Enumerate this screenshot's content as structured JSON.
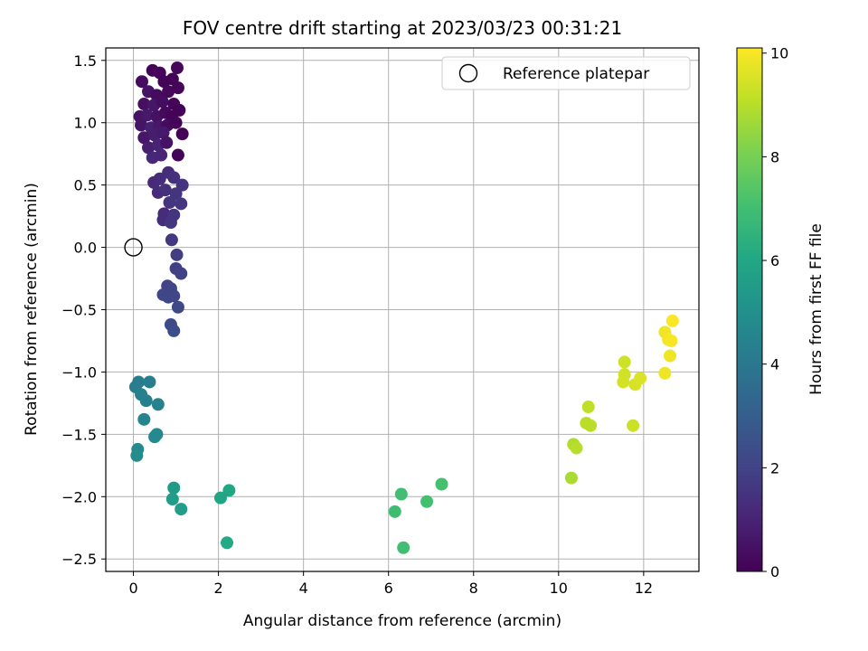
{
  "chart_data": {
    "type": "scatter",
    "title": "FOV centre drift starting at 2023/03/23 00:31:21",
    "xlabel": "Angular distance from reference (arcmin)",
    "ylabel": "Rotation from reference (arcmin)",
    "xlim": [
      -0.65,
      13.3
    ],
    "ylim": [
      -2.6,
      1.6
    ],
    "xticks": [
      0,
      2,
      4,
      6,
      8,
      10,
      12
    ],
    "xtick_labels": [
      "0",
      "2",
      "4",
      "6",
      "8",
      "10",
      "12"
    ],
    "yticks": [
      -2.5,
      -2.0,
      -1.5,
      -1.0,
      -0.5,
      0.0,
      0.5,
      1.0,
      1.5
    ],
    "ytick_labels": [
      "−2.5",
      "−2.0",
      "−1.5",
      "−1.0",
      "−0.5",
      "0.0",
      "0.5",
      "1.0",
      "1.5"
    ],
    "grid": true,
    "legend": {
      "position": "top-right",
      "entries": [
        "Reference platepar"
      ]
    },
    "reference_point": {
      "name": "Reference platepar",
      "x": 0,
      "y": 0
    },
    "colormap": "viridis",
    "colorbar": {
      "label": "Hours from first FF file",
      "range": [
        0,
        10.1
      ],
      "ticks": [
        0,
        2,
        4,
        6,
        8,
        10
      ],
      "tick_labels": [
        "0",
        "2",
        "4",
        "6",
        "8",
        "10"
      ]
    },
    "points": [
      {
        "x": 0.45,
        "y": 1.42,
        "h": 0.1
      },
      {
        "x": 0.62,
        "y": 1.4,
        "h": 0.15
      },
      {
        "x": 1.03,
        "y": 1.44,
        "h": 0.2
      },
      {
        "x": 0.2,
        "y": 1.33,
        "h": 0.3
      },
      {
        "x": 0.72,
        "y": 1.33,
        "h": 0.1
      },
      {
        "x": 0.92,
        "y": 1.35,
        "h": 0.05
      },
      {
        "x": 0.35,
        "y": 1.25,
        "h": 0.5
      },
      {
        "x": 0.55,
        "y": 1.22,
        "h": 0.3
      },
      {
        "x": 0.82,
        "y": 1.25,
        "h": 0.2
      },
      {
        "x": 1.05,
        "y": 1.28,
        "h": 0.1
      },
      {
        "x": 0.25,
        "y": 1.15,
        "h": 0.4
      },
      {
        "x": 0.48,
        "y": 1.14,
        "h": 0.6
      },
      {
        "x": 0.68,
        "y": 1.17,
        "h": 0.35
      },
      {
        "x": 0.95,
        "y": 1.15,
        "h": 0.15
      },
      {
        "x": 1.08,
        "y": 1.1,
        "h": 0.05
      },
      {
        "x": 0.15,
        "y": 1.05,
        "h": 0.5
      },
      {
        "x": 0.32,
        "y": 1.06,
        "h": 0.7
      },
      {
        "x": 0.55,
        "y": 1.05,
        "h": 0.45
      },
      {
        "x": 0.75,
        "y": 1.08,
        "h": 0.25
      },
      {
        "x": 0.9,
        "y": 1.05,
        "h": 0.1
      },
      {
        "x": 0.18,
        "y": 0.98,
        "h": 0.55
      },
      {
        "x": 0.42,
        "y": 0.96,
        "h": 0.9
      },
      {
        "x": 0.6,
        "y": 0.97,
        "h": 0.65
      },
      {
        "x": 0.8,
        "y": 0.98,
        "h": 0.3
      },
      {
        "x": 1.0,
        "y": 1.0,
        "h": 0.1
      },
      {
        "x": 0.25,
        "y": 0.88,
        "h": 0.6
      },
      {
        "x": 0.5,
        "y": 0.9,
        "h": 0.8
      },
      {
        "x": 0.7,
        "y": 0.92,
        "h": 0.7
      },
      {
        "x": 1.15,
        "y": 0.91,
        "h": 0.05
      },
      {
        "x": 0.35,
        "y": 0.8,
        "h": 0.85
      },
      {
        "x": 0.58,
        "y": 0.82,
        "h": 1.0
      },
      {
        "x": 0.78,
        "y": 0.84,
        "h": 0.5
      },
      {
        "x": 0.45,
        "y": 0.72,
        "h": 1.1
      },
      {
        "x": 0.65,
        "y": 0.74,
        "h": 1.05
      },
      {
        "x": 1.05,
        "y": 0.74,
        "h": 0.1
      },
      {
        "x": 0.82,
        "y": 0.6,
        "h": 1.3
      },
      {
        "x": 0.48,
        "y": 0.52,
        "h": 1.2
      },
      {
        "x": 0.62,
        "y": 0.55,
        "h": 1.3
      },
      {
        "x": 0.95,
        "y": 0.56,
        "h": 1.4
      },
      {
        "x": 1.15,
        "y": 0.5,
        "h": 1.5
      },
      {
        "x": 0.58,
        "y": 0.44,
        "h": 1.2
      },
      {
        "x": 0.75,
        "y": 0.46,
        "h": 1.4
      },
      {
        "x": 1.0,
        "y": 0.43,
        "h": 1.55
      },
      {
        "x": 0.85,
        "y": 0.36,
        "h": 1.5
      },
      {
        "x": 1.12,
        "y": 0.35,
        "h": 1.6
      },
      {
        "x": 0.72,
        "y": 0.27,
        "h": 1.25
      },
      {
        "x": 0.95,
        "y": 0.26,
        "h": 1.55
      },
      {
        "x": 0.7,
        "y": 0.22,
        "h": 1.3
      },
      {
        "x": 0.88,
        "y": 0.2,
        "h": 1.5
      },
      {
        "x": 0.9,
        "y": 0.06,
        "h": 1.65
      },
      {
        "x": 1.02,
        "y": -0.06,
        "h": 1.8
      },
      {
        "x": 1.0,
        "y": -0.17,
        "h": 1.9
      },
      {
        "x": 1.12,
        "y": -0.21,
        "h": 1.95
      },
      {
        "x": 0.8,
        "y": -0.31,
        "h": 2.0
      },
      {
        "x": 0.88,
        "y": -0.33,
        "h": 2.05
      },
      {
        "x": 0.7,
        "y": -0.38,
        "h": 2.1
      },
      {
        "x": 0.82,
        "y": -0.4,
        "h": 2.15
      },
      {
        "x": 0.95,
        "y": -0.39,
        "h": 2.1
      },
      {
        "x": 1.05,
        "y": -0.48,
        "h": 2.2
      },
      {
        "x": 0.88,
        "y": -0.62,
        "h": 2.3
      },
      {
        "x": 0.95,
        "y": -0.67,
        "h": 2.35
      },
      {
        "x": 0.12,
        "y": -1.08,
        "h": 4.2
      },
      {
        "x": 0.38,
        "y": -1.08,
        "h": 4.25
      },
      {
        "x": 0.05,
        "y": -1.12,
        "h": 4.3
      },
      {
        "x": 0.18,
        "y": -1.18,
        "h": 4.4
      },
      {
        "x": 0.3,
        "y": -1.23,
        "h": 4.35
      },
      {
        "x": 0.58,
        "y": -1.26,
        "h": 4.5
      },
      {
        "x": 0.25,
        "y": -1.38,
        "h": 4.55
      },
      {
        "x": 0.55,
        "y": -1.5,
        "h": 4.7
      },
      {
        "x": 0.5,
        "y": -1.52,
        "h": 4.75
      },
      {
        "x": 0.1,
        "y": -1.62,
        "h": 4.8
      },
      {
        "x": 0.08,
        "y": -1.67,
        "h": 4.85
      },
      {
        "x": 0.95,
        "y": -1.93,
        "h": 5.5
      },
      {
        "x": 0.92,
        "y": -2.02,
        "h": 5.55
      },
      {
        "x": 1.12,
        "y": -2.1,
        "h": 5.6
      },
      {
        "x": 2.25,
        "y": -1.95,
        "h": 6.0
      },
      {
        "x": 2.05,
        "y": -2.01,
        "h": 5.95
      },
      {
        "x": 2.2,
        "y": -2.37,
        "h": 6.1
      },
      {
        "x": 6.3,
        "y": -1.98,
        "h": 7.0
      },
      {
        "x": 6.9,
        "y": -2.04,
        "h": 7.05
      },
      {
        "x": 7.25,
        "y": -1.9,
        "h": 7.1
      },
      {
        "x": 6.15,
        "y": -2.12,
        "h": 6.95
      },
      {
        "x": 6.35,
        "y": -2.41,
        "h": 7.0
      },
      {
        "x": 10.3,
        "y": -1.85,
        "h": 8.8
      },
      {
        "x": 10.35,
        "y": -1.58,
        "h": 8.9
      },
      {
        "x": 10.42,
        "y": -1.61,
        "h": 9.0
      },
      {
        "x": 10.65,
        "y": -1.41,
        "h": 9.0
      },
      {
        "x": 10.75,
        "y": -1.43,
        "h": 9.05
      },
      {
        "x": 10.7,
        "y": -1.28,
        "h": 9.1
      },
      {
        "x": 11.55,
        "y": -0.92,
        "h": 9.35
      },
      {
        "x": 11.55,
        "y": -1.02,
        "h": 9.4
      },
      {
        "x": 11.52,
        "y": -1.08,
        "h": 9.45
      },
      {
        "x": 11.75,
        "y": -1.43,
        "h": 9.3
      },
      {
        "x": 11.8,
        "y": -1.1,
        "h": 9.5
      },
      {
        "x": 11.92,
        "y": -1.05,
        "h": 9.55
      },
      {
        "x": 12.5,
        "y": -0.68,
        "h": 9.9
      },
      {
        "x": 12.58,
        "y": -0.74,
        "h": 9.95
      },
      {
        "x": 12.65,
        "y": -0.75,
        "h": 10.0
      },
      {
        "x": 12.68,
        "y": -0.59,
        "h": 10.05
      },
      {
        "x": 12.5,
        "y": -1.01,
        "h": 9.85
      },
      {
        "x": 12.62,
        "y": -0.87,
        "h": 9.9
      }
    ]
  }
}
